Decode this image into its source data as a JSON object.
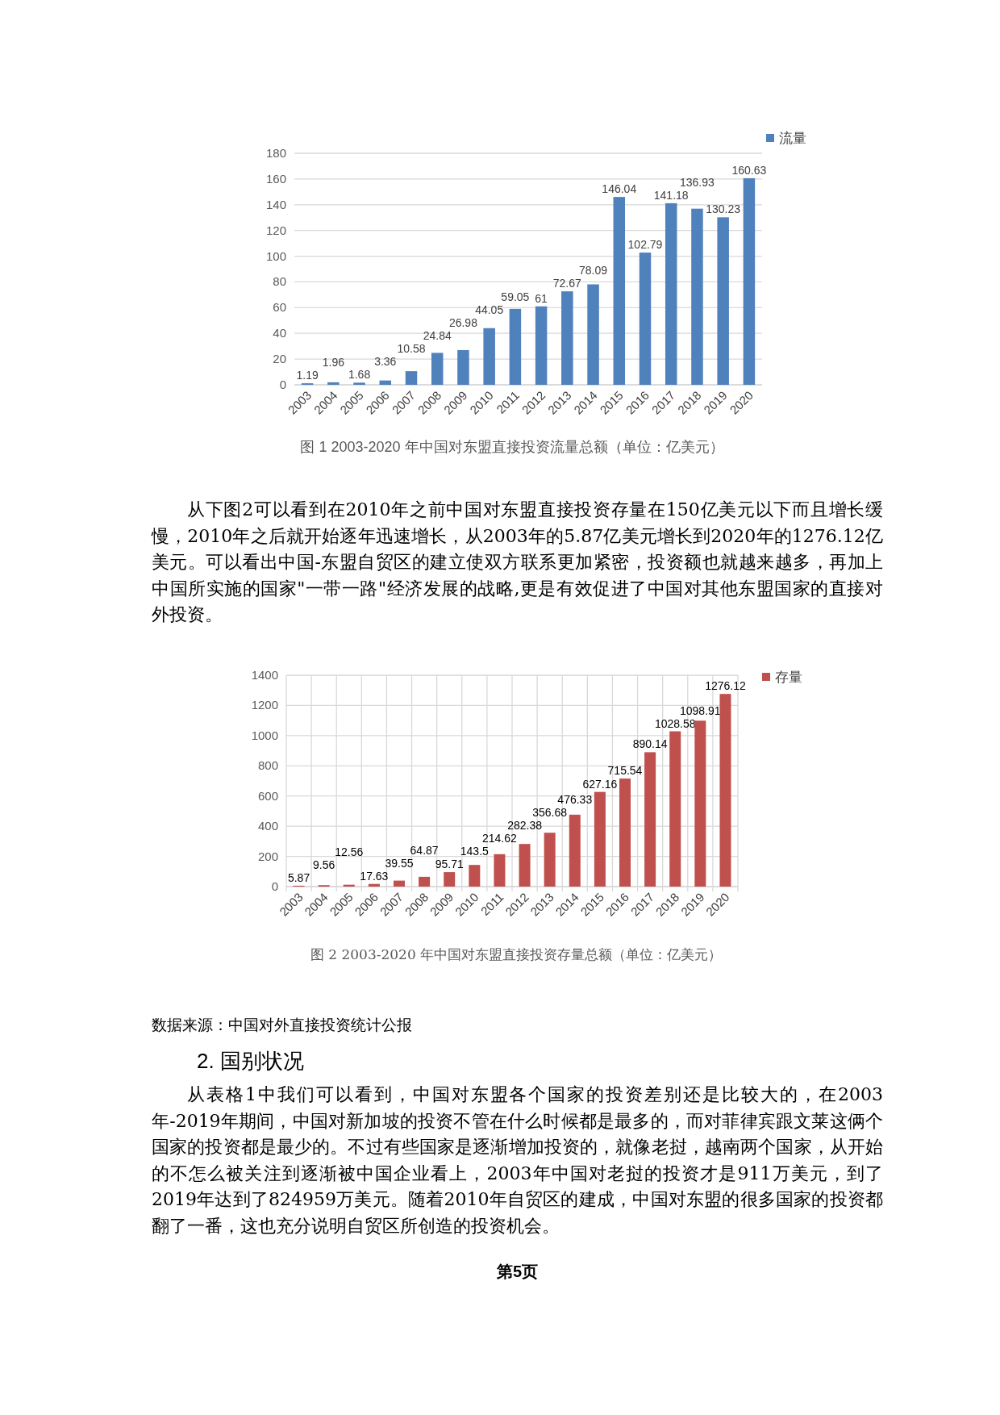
{
  "chart_data": [
    {
      "type": "bar",
      "title": "图 1 2003-2020 年中国对东盟直接投资流量总额（单位：亿美元）",
      "categories": [
        "2003",
        "2004",
        "2005",
        "2006",
        "2007",
        "2008",
        "2009",
        "2010",
        "2011",
        "2012",
        "2013",
        "2014",
        "2015",
        "2016",
        "2017",
        "2018",
        "2019",
        "2020"
      ],
      "series": [
        {
          "name": "流量",
          "color": "#4f81bd",
          "values": [
            1.19,
            1.96,
            1.68,
            3.36,
            10.58,
            24.84,
            26.98,
            44.05,
            59.05,
            61,
            72.67,
            78.09,
            146.04,
            102.79,
            141.18,
            136.93,
            130.23,
            160.63
          ]
        }
      ],
      "ylim": [
        0,
        180
      ],
      "yticks": [
        0,
        20,
        40,
        60,
        80,
        100,
        120,
        140,
        160,
        180
      ],
      "grid": "y",
      "legend": "top right",
      "data_labels": true,
      "annotations": [
        "从下图2可以看到在2010年之前中国对东盟直接投资存量在150亿美元以下而且增长缓慢，2010年之后就开始逐年迅速增长，从2003年的5.87亿美元增长到2020年的1276.12亿美元。可以看出中国-东盟自贸区的建立使双方联系更加紧密，投资额也就越来越多，再加上中国所实施的国家\"一带一路\"经济发展的战略,更是有效促进了中国对其他东盟国家的直接对外投资。"
      ]
    },
    {
      "type": "bar",
      "title": "图 2 2003-2020 年中国对东盟直接投资存量总额（单位：亿美元）",
      "categories": [
        "2003",
        "2004",
        "2005",
        "2006",
        "2007",
        "2008",
        "2009",
        "2010",
        "2011",
        "2012",
        "2013",
        "2014",
        "2015",
        "2016",
        "2017",
        "2018",
        "2019",
        "2020"
      ],
      "series": [
        {
          "name": "存量",
          "color": "#c0504d",
          "values": [
            5.87,
            9.56,
            12.56,
            17.63,
            39.55,
            64.87,
            95.71,
            143.5,
            214.62,
            282.38,
            356.68,
            476.33,
            627.16,
            715.54,
            890.14,
            1028.58,
            1098.91,
            1276.12
          ]
        }
      ],
      "ylim": [
        0,
        1400
      ],
      "yticks": [
        0,
        200,
        400,
        600,
        800,
        1000,
        1200,
        1400
      ],
      "grid": true,
      "legend": "top right",
      "data_labels": true,
      "annotations": [
        "数据来源：中国对外直接投资统计公报",
        "2. 国别状况",
        "从表格1中我们可以看到，中国对东盟各个国家的投资差别还是比较大的，在2003年-2019年期间，中国对新加坡的投资不管在什么时候都是最多的，而对菲律宾跟文莱这俩个国家的投资都是最少的。不过有些国家是逐渐增加投资的，就像老挝，越南两个国家，从开始的不怎么被关注到逐渐被中国企业看上，2003年中国对老挝的投资才是911万美元，到了2019年达到了824959万美元。随着2010年自贸区的建成，中国对东盟的很多国家的投资都翻了一番，这也充分说明自贸区所创造的投资机会。",
        "第5页"
      ]
    }
  ]
}
